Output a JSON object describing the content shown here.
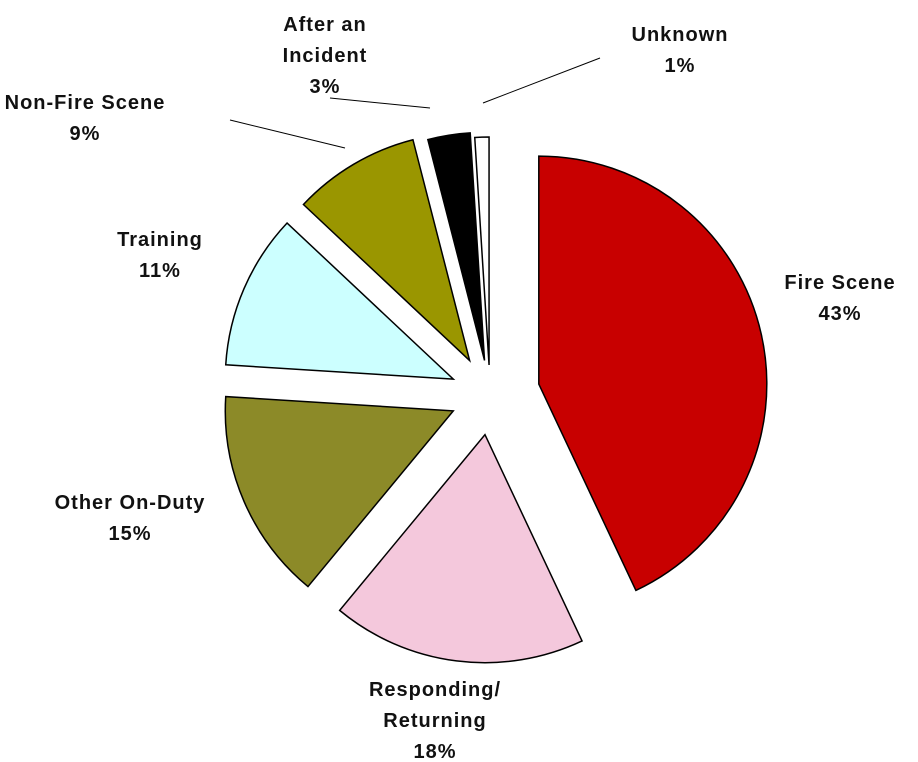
{
  "chart_data": {
    "type": "pie",
    "categories": [
      "Fire Scene",
      "Responding/ Returning",
      "Other On-Duty",
      "Training",
      "Non-Fire Scene",
      "After an Incident",
      "Unknown"
    ],
    "values": [
      43,
      18,
      15,
      11,
      9,
      3,
      1
    ],
    "value_labels": [
      "43%",
      "18%",
      "15%",
      "11%",
      "9%",
      "3%",
      "1%"
    ],
    "colors": [
      "#c80000",
      "#f4c8dc",
      "#8c8a28",
      "#ccffff",
      "#9a9600",
      "#000000",
      "#ffffff"
    ]
  }
}
